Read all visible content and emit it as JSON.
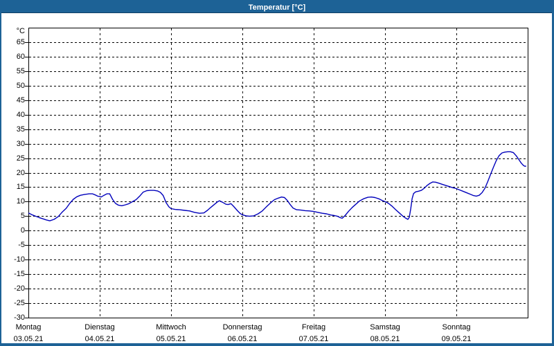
{
  "window": {
    "title": "Temperatur [°C]"
  },
  "colors": {
    "titlebar": "#1d6296",
    "window_frame": "#1d6296",
    "line": "#0000bb",
    "grid": "#000000",
    "text": "#000000",
    "background": "#ffffff"
  },
  "chart_data": {
    "type": "line",
    "title": "Temperatur [°C]",
    "ylabel": "°C",
    "xlabel": "",
    "ylim": [
      -30,
      70
    ],
    "y_tick_step": 5,
    "y_ticks": [
      65,
      60,
      55,
      50,
      45,
      40,
      35,
      30,
      25,
      20,
      15,
      10,
      5,
      0,
      -5,
      -10,
      -15,
      -20,
      -25,
      -30
    ],
    "grid": "dashed",
    "legend_position": "none",
    "x_axis_days": [
      {
        "name": "Montag",
        "date": "03.05.21"
      },
      {
        "name": "Dienstag",
        "date": "04.05.21"
      },
      {
        "name": "Mittwoch",
        "date": "05.05.21"
      },
      {
        "name": "Donnerstag",
        "date": "06.05.21"
      },
      {
        "name": "Freitag",
        "date": "07.05.21"
      },
      {
        "name": "Samstag",
        "date": "08.05.21"
      },
      {
        "name": "Sonntag",
        "date": "09.05.21"
      }
    ],
    "x_range_days": [
      0,
      7
    ],
    "series": [
      {
        "name": "Temperatur",
        "color": "#0000bb",
        "points": [
          [
            0.0,
            6.1
          ],
          [
            0.05,
            5.5
          ],
          [
            0.1,
            5.0
          ],
          [
            0.15,
            4.5
          ],
          [
            0.2,
            4.1
          ],
          [
            0.25,
            3.7
          ],
          [
            0.3,
            3.4
          ],
          [
            0.36,
            3.9
          ],
          [
            0.42,
            4.9
          ],
          [
            0.47,
            6.3
          ],
          [
            0.53,
            7.7
          ],
          [
            0.58,
            9.4
          ],
          [
            0.63,
            10.8
          ],
          [
            0.68,
            11.7
          ],
          [
            0.73,
            12.2
          ],
          [
            0.79,
            12.5
          ],
          [
            0.85,
            12.7
          ],
          [
            0.9,
            12.7
          ],
          [
            0.94,
            12.3
          ],
          [
            0.97,
            11.9
          ],
          [
            1.0,
            11.8
          ],
          [
            1.02,
            11.6
          ],
          [
            1.06,
            12.2
          ],
          [
            1.1,
            12.7
          ],
          [
            1.14,
            12.7
          ],
          [
            1.18,
            10.8
          ],
          [
            1.22,
            9.4
          ],
          [
            1.26,
            8.8
          ],
          [
            1.31,
            8.6
          ],
          [
            1.36,
            8.9
          ],
          [
            1.41,
            9.3
          ],
          [
            1.46,
            10.0
          ],
          [
            1.51,
            10.7
          ],
          [
            1.56,
            11.9
          ],
          [
            1.61,
            13.3
          ],
          [
            1.66,
            13.8
          ],
          [
            1.71,
            13.9
          ],
          [
            1.76,
            13.9
          ],
          [
            1.81,
            13.7
          ],
          [
            1.85,
            13.2
          ],
          [
            1.89,
            12.1
          ],
          [
            1.93,
            9.7
          ],
          [
            1.97,
            8.2
          ],
          [
            2.0,
            7.6
          ],
          [
            2.06,
            7.3
          ],
          [
            2.12,
            7.2
          ],
          [
            2.19,
            7.0
          ],
          [
            2.26,
            6.8
          ],
          [
            2.33,
            6.3
          ],
          [
            2.4,
            6.0
          ],
          [
            2.46,
            6.1
          ],
          [
            2.51,
            7.0
          ],
          [
            2.56,
            8.1
          ],
          [
            2.61,
            9.1
          ],
          [
            2.65,
            9.9
          ],
          [
            2.68,
            10.3
          ],
          [
            2.72,
            9.8
          ],
          [
            2.77,
            9.1
          ],
          [
            2.8,
            9.0
          ],
          [
            2.84,
            9.3
          ],
          [
            2.88,
            8.3
          ],
          [
            2.93,
            6.9
          ],
          [
            2.97,
            5.9
          ],
          [
            3.0,
            5.5
          ],
          [
            3.05,
            5.1
          ],
          [
            3.1,
            5.0
          ],
          [
            3.16,
            5.1
          ],
          [
            3.22,
            5.8
          ],
          [
            3.28,
            6.8
          ],
          [
            3.34,
            8.3
          ],
          [
            3.4,
            9.7
          ],
          [
            3.45,
            10.7
          ],
          [
            3.5,
            11.2
          ],
          [
            3.55,
            11.6
          ],
          [
            3.59,
            11.4
          ],
          [
            3.63,
            10.4
          ],
          [
            3.67,
            9.0
          ],
          [
            3.71,
            7.8
          ],
          [
            3.76,
            7.2
          ],
          [
            3.82,
            7.1
          ],
          [
            3.88,
            6.9
          ],
          [
            3.94,
            6.8
          ],
          [
            4.0,
            6.6
          ],
          [
            4.06,
            6.3
          ],
          [
            4.12,
            6.0
          ],
          [
            4.18,
            5.8
          ],
          [
            4.24,
            5.4
          ],
          [
            4.29,
            5.2
          ],
          [
            4.33,
            5.0
          ],
          [
            4.37,
            4.5
          ],
          [
            4.4,
            4.3
          ],
          [
            4.44,
            5.2
          ],
          [
            4.49,
            6.7
          ],
          [
            4.54,
            8.0
          ],
          [
            4.59,
            9.1
          ],
          [
            4.64,
            10.2
          ],
          [
            4.7,
            11.0
          ],
          [
            4.76,
            11.5
          ],
          [
            4.81,
            11.6
          ],
          [
            4.86,
            11.4
          ],
          [
            4.92,
            10.9
          ],
          [
            4.96,
            10.4
          ],
          [
            5.0,
            10.0
          ],
          [
            5.05,
            9.4
          ],
          [
            5.1,
            8.4
          ],
          [
            5.15,
            7.2
          ],
          [
            5.2,
            6.1
          ],
          [
            5.25,
            5.0
          ],
          [
            5.29,
            4.3
          ],
          [
            5.32,
            3.9
          ],
          [
            5.34,
            4.6
          ],
          [
            5.36,
            7.5
          ],
          [
            5.38,
            11.0
          ],
          [
            5.4,
            12.8
          ],
          [
            5.43,
            13.4
          ],
          [
            5.47,
            13.6
          ],
          [
            5.51,
            13.9
          ],
          [
            5.55,
            14.6
          ],
          [
            5.59,
            15.6
          ],
          [
            5.63,
            16.3
          ],
          [
            5.67,
            16.8
          ],
          [
            5.71,
            16.7
          ],
          [
            5.75,
            16.4
          ],
          [
            5.8,
            16.0
          ],
          [
            5.85,
            15.6
          ],
          [
            5.9,
            15.2
          ],
          [
            5.95,
            14.8
          ],
          [
            6.0,
            14.5
          ],
          [
            6.05,
            14.0
          ],
          [
            6.1,
            13.5
          ],
          [
            6.15,
            13.0
          ],
          [
            6.2,
            12.5
          ],
          [
            6.24,
            12.1
          ],
          [
            6.28,
            11.9
          ],
          [
            6.32,
            12.2
          ],
          [
            6.36,
            13.1
          ],
          [
            6.4,
            14.6
          ],
          [
            6.44,
            16.9
          ],
          [
            6.48,
            19.4
          ],
          [
            6.52,
            21.9
          ],
          [
            6.56,
            24.2
          ],
          [
            6.6,
            25.9
          ],
          [
            6.64,
            26.8
          ],
          [
            6.68,
            27.1
          ],
          [
            6.72,
            27.2
          ],
          [
            6.76,
            27.2
          ],
          [
            6.8,
            26.9
          ],
          [
            6.84,
            25.8
          ],
          [
            6.88,
            24.4
          ],
          [
            6.91,
            23.3
          ],
          [
            6.94,
            22.5
          ],
          [
            6.96,
            22.2
          ],
          [
            6.98,
            22.3
          ]
        ]
      }
    ]
  }
}
